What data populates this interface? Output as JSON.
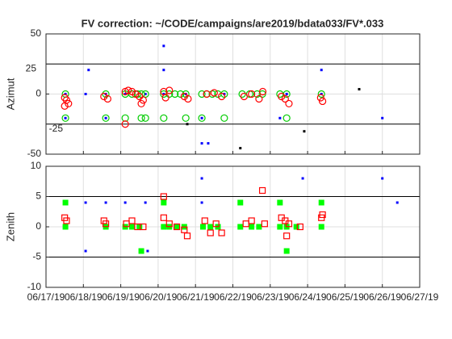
{
  "chart_data": [
    {
      "type": "scatter",
      "title": "FV correction: ~/CODE/campaigns/are2019/bdata033/FV*.033",
      "ylabel": "Azimut",
      "xlim": [
        0,
        10
      ],
      "xticks": [
        0,
        1,
        2,
        3,
        4,
        5,
        6,
        7,
        8,
        9,
        10
      ],
      "ylim": [
        -50,
        50
      ],
      "yticks": [
        -50,
        0,
        50
      ],
      "grid": true,
      "ref_lines": [
        {
          "value": 25,
          "label": "25"
        },
        {
          "value": -25,
          "label": "-25"
        }
      ],
      "series": [
        {
          "color": "#0000ff",
          "marker": "dot",
          "x": [
            0.52,
            0.52,
            1.06,
            1.14,
            1.6,
            1.6,
            2.12,
            2.66,
            3.15,
            3.15,
            3.15,
            3.74,
            4.17,
            4.17,
            4.34,
            4.77,
            6.26,
            6.44,
            7.37,
            7.37,
            9.0
          ],
          "values": [
            0,
            -20,
            0,
            20,
            0,
            -20,
            0,
            0,
            40,
            20,
            0,
            0,
            -20,
            -41,
            -41,
            0,
            -20,
            0,
            20,
            0,
            -20
          ]
        },
        {
          "color": "#00cc00",
          "marker": "circle",
          "x": [
            0.52,
            0.52,
            1.6,
            1.6,
            2.12,
            2.12,
            2.3,
            2.45,
            2.55,
            2.55,
            2.66,
            2.66,
            3.15,
            3.15,
            3.3,
            3.45,
            3.6,
            3.74,
            3.74,
            4.17,
            4.17,
            4.3,
            4.45,
            4.6,
            4.77,
            4.77,
            5.25,
            5.45,
            5.65,
            5.79,
            6.26,
            6.44,
            6.44,
            7.37
          ],
          "values": [
            0,
            -20,
            0,
            -20,
            0,
            -20,
            0,
            0,
            0,
            -20,
            0,
            -20,
            0,
            -20,
            0,
            0,
            0,
            0,
            -20,
            0,
            -20,
            0,
            0,
            0,
            0,
            -20,
            0,
            0,
            0,
            0,
            0,
            0,
            -20,
            0
          ]
        },
        {
          "color": "#ff0000",
          "marker": "circle",
          "x": [
            0.5,
            0.55,
            0.6,
            0.5,
            1.55,
            1.65,
            2.12,
            2.2,
            2.3,
            2.4,
            2.5,
            2.6,
            2.55,
            3.15,
            3.2,
            3.3,
            3.7,
            3.8,
            4.3,
            4.5,
            4.7,
            5.3,
            5.5,
            5.7,
            5.8,
            6.3,
            6.4,
            6.5,
            7.35,
            7.4,
            2.12
          ],
          "values": [
            -3,
            -5,
            -8,
            -10,
            -2,
            -4,
            2,
            3,
            2,
            0,
            -2,
            -5,
            -8,
            2,
            -3,
            3,
            -2,
            -4,
            0,
            1,
            -2,
            -2,
            0,
            -4,
            2,
            -2,
            -4,
            -8,
            -3,
            -6,
            -25
          ]
        },
        {
          "color": "#000000",
          "marker": "dot",
          "x": [
            3.78,
            8.38,
            6.91,
            5.2
          ],
          "values": [
            -25,
            4,
            -31,
            -45
          ]
        }
      ]
    },
    {
      "type": "scatter",
      "ylabel": "Zenith",
      "xlim": [
        0,
        10
      ],
      "xticks": [
        {
          "value": 0,
          "label": "06/17/19"
        },
        {
          "value": 1,
          "label": "06/18/19"
        },
        {
          "value": 2,
          "label": "06/19/19"
        },
        {
          "value": 3,
          "label": "06/20/19"
        },
        {
          "value": 4,
          "label": "06/21/19"
        },
        {
          "value": 5,
          "label": "06/22/19"
        },
        {
          "value": 6,
          "label": "06/23/19"
        },
        {
          "value": 7,
          "label": "06/24/19"
        },
        {
          "value": 8,
          "label": "06/25/19"
        },
        {
          "value": 9,
          "label": "06/26/19"
        },
        {
          "value": 10,
          "label": "06/27/19"
        }
      ],
      "ylim": [
        -10,
        10
      ],
      "yticks": [
        -10,
        -5,
        0,
        5,
        10
      ],
      "grid": true,
      "ref_lines": [
        {
          "value": 5
        },
        {
          "value": -5
        }
      ],
      "series": [
        {
          "color": "#0000ff",
          "marker": "dot",
          "x": [
            0.52,
            1.06,
            1.06,
            1.6,
            2.12,
            2.66,
            2.72,
            3.15,
            4.17,
            4.17,
            5.2,
            6.87,
            7.37,
            9.0,
            9.4
          ],
          "values": [
            4,
            4,
            -4,
            4,
            4,
            4,
            -4,
            4,
            8,
            4,
            4,
            8,
            4,
            8,
            4
          ]
        },
        {
          "color": "#00ff00",
          "marker": "square",
          "x": [
            0.52,
            0.52,
            1.6,
            2.12,
            2.3,
            2.5,
            2.55,
            3.15,
            3.15,
            3.3,
            3.5,
            3.7,
            4.2,
            4.4,
            4.6,
            5.2,
            5.2,
            5.5,
            5.7,
            6.26,
            6.26,
            6.44,
            6.44,
            6.7,
            7.37,
            7.37
          ],
          "values": [
            4,
            0,
            0,
            0,
            0,
            0,
            -4,
            4,
            0,
            0,
            0,
            0,
            0,
            0,
            0,
            4,
            0,
            0,
            0,
            4,
            0,
            0,
            -4,
            0,
            4,
            0
          ]
        },
        {
          "color": "#ff0000",
          "marker": "square-open",
          "x": [
            0.5,
            0.55,
            1.55,
            1.6,
            2.15,
            2.3,
            2.45,
            2.6,
            3.15,
            3.15,
            3.3,
            3.5,
            3.7,
            3.78,
            4.25,
            4.4,
            4.55,
            4.7,
            5.35,
            5.5,
            5.79,
            5.85,
            6.3,
            6.4,
            6.5,
            6.44,
            6.8,
            7.37,
            7.4
          ],
          "values": [
            1.5,
            1,
            1,
            0.5,
            0.5,
            1,
            0,
            0,
            5,
            1.5,
            0.5,
            0,
            -0.5,
            -1.5,
            1,
            -1,
            0.5,
            -1,
            0.5,
            1,
            6,
            0.5,
            1.5,
            1,
            0.5,
            -1.5,
            0,
            1.5,
            2
          ]
        }
      ]
    }
  ]
}
